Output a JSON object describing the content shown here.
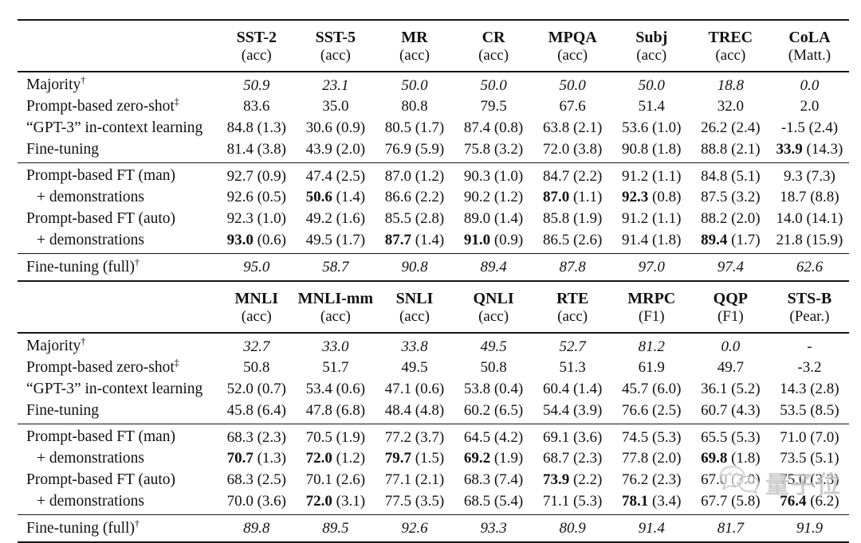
{
  "watermark": {
    "text": "量子位",
    "icon": "wechat-bubbles-icon",
    "color": "#c3c3c3"
  },
  "tables": [
    {
      "name": "single-sentence-tasks",
      "columns": [
        {
          "task": "SST-2",
          "metric": "(acc)"
        },
        {
          "task": "SST-5",
          "metric": "(acc)"
        },
        {
          "task": "MR",
          "metric": "(acc)"
        },
        {
          "task": "CR",
          "metric": "(acc)"
        },
        {
          "task": "MPQA",
          "metric": "(acc)"
        },
        {
          "task": "Subj",
          "metric": "(acc)"
        },
        {
          "task": "TREC",
          "metric": "(acc)"
        },
        {
          "task": "CoLA",
          "metric": "(Matt.)"
        }
      ],
      "groups": [
        {
          "cls": "g-baselines",
          "rows": [
            {
              "label": "Majority",
              "sup": "†",
              "italic": true,
              "cells": [
                {
                  "v": "50.9"
                },
                {
                  "v": "23.1"
                },
                {
                  "v": "50.0"
                },
                {
                  "v": "50.0"
                },
                {
                  "v": "50.0"
                },
                {
                  "v": "50.0"
                },
                {
                  "v": "18.8"
                },
                {
                  "v": "0.0"
                }
              ]
            },
            {
              "label": "Prompt-based zero-shot",
              "sup": "‡",
              "cells": [
                {
                  "v": "83.6"
                },
                {
                  "v": "35.0"
                },
                {
                  "v": "80.8"
                },
                {
                  "v": "79.5"
                },
                {
                  "v": "67.6"
                },
                {
                  "v": "51.4"
                },
                {
                  "v": "32.0"
                },
                {
                  "v": "2.0"
                }
              ]
            },
            {
              "label": "“GPT-3” in-context learning",
              "cells": [
                {
                  "v": "84.8",
                  "s": "(1.3)"
                },
                {
                  "v": "30.6",
                  "s": "(0.9)"
                },
                {
                  "v": "80.5",
                  "s": "(1.7)"
                },
                {
                  "v": "87.4",
                  "s": "(0.8)"
                },
                {
                  "v": "63.8",
                  "s": "(2.1)"
                },
                {
                  "v": "53.6",
                  "s": "(1.0)"
                },
                {
                  "v": "26.2",
                  "s": "(2.4)"
                },
                {
                  "v": "-1.5",
                  "s": "(2.4)"
                }
              ]
            },
            {
              "label": "Fine-tuning",
              "cells": [
                {
                  "v": "81.4",
                  "s": "(3.8)"
                },
                {
                  "v": "43.9",
                  "s": "(2.0)"
                },
                {
                  "v": "76.9",
                  "s": "(5.9)"
                },
                {
                  "v": "75.8",
                  "s": "(3.2)"
                },
                {
                  "v": "72.0",
                  "s": "(3.8)"
                },
                {
                  "v": "90.8",
                  "s": "(1.8)"
                },
                {
                  "v": "88.8",
                  "s": "(2.1)"
                },
                {
                  "v": "33.9",
                  "s": "(14.3)",
                  "b": true
                }
              ]
            }
          ]
        },
        {
          "cls": "g-prompt",
          "rows": [
            {
              "label": "Prompt-based FT (man)",
              "cells": [
                {
                  "v": "92.7",
                  "s": "(0.9)"
                },
                {
                  "v": "47.4",
                  "s": "(2.5)"
                },
                {
                  "v": "87.0",
                  "s": "(1.2)"
                },
                {
                  "v": "90.3",
                  "s": "(1.0)"
                },
                {
                  "v": "84.7",
                  "s": "(2.2)"
                },
                {
                  "v": "91.2",
                  "s": "(1.1)"
                },
                {
                  "v": "84.8",
                  "s": "(5.1)"
                },
                {
                  "v": "9.3",
                  "s": "(7.3)"
                }
              ]
            },
            {
              "label": "+ demonstrations",
              "indent": true,
              "cells": [
                {
                  "v": "92.6",
                  "s": "(0.5)"
                },
                {
                  "v": "50.6",
                  "s": "(1.4)",
                  "b": true
                },
                {
                  "v": "86.6",
                  "s": "(2.2)"
                },
                {
                  "v": "90.2",
                  "s": "(1.2)"
                },
                {
                  "v": "87.0",
                  "s": "(1.1)",
                  "b": true
                },
                {
                  "v": "92.3",
                  "s": "(0.8)",
                  "b": true
                },
                {
                  "v": "87.5",
                  "s": "(3.2)"
                },
                {
                  "v": "18.7",
                  "s": "(8.8)"
                }
              ]
            },
            {
              "label": "Prompt-based FT (auto)",
              "cells": [
                {
                  "v": "92.3",
                  "s": "(1.0)"
                },
                {
                  "v": "49.2",
                  "s": "(1.6)"
                },
                {
                  "v": "85.5",
                  "s": "(2.8)"
                },
                {
                  "v": "89.0",
                  "s": "(1.4)"
                },
                {
                  "v": "85.8",
                  "s": "(1.9)"
                },
                {
                  "v": "91.2",
                  "s": "(1.1)"
                },
                {
                  "v": "88.2",
                  "s": "(2.0)"
                },
                {
                  "v": "14.0",
                  "s": "(14.1)"
                }
              ]
            },
            {
              "label": "+ demonstrations",
              "indent": true,
              "cells": [
                {
                  "v": "93.0",
                  "s": "(0.6)",
                  "b": true
                },
                {
                  "v": "49.5",
                  "s": "(1.7)"
                },
                {
                  "v": "87.7",
                  "s": "(1.4)",
                  "b": true
                },
                {
                  "v": "91.0",
                  "s": "(0.9)",
                  "b": true
                },
                {
                  "v": "86.5",
                  "s": "(2.6)"
                },
                {
                  "v": "91.4",
                  "s": "(1.8)"
                },
                {
                  "v": "89.4",
                  "s": "(1.7)",
                  "b": true
                },
                {
                  "v": "21.8",
                  "s": "(15.9)"
                }
              ]
            }
          ]
        },
        {
          "cls": "g-full",
          "rows": [
            {
              "label": "Fine-tuning (full)",
              "sup": "†",
              "italic": true,
              "cells": [
                {
                  "v": "95.0"
                },
                {
                  "v": "58.7"
                },
                {
                  "v": "90.8"
                },
                {
                  "v": "89.4"
                },
                {
                  "v": "87.8"
                },
                {
                  "v": "97.0"
                },
                {
                  "v": "97.4"
                },
                {
                  "v": "62.6"
                }
              ]
            }
          ]
        }
      ]
    },
    {
      "name": "sentence-pair-tasks",
      "columns": [
        {
          "task": "MNLI",
          "metric": "(acc)"
        },
        {
          "task": "MNLI-mm",
          "metric": "(acc)"
        },
        {
          "task": "SNLI",
          "metric": "(acc)"
        },
        {
          "task": "QNLI",
          "metric": "(acc)"
        },
        {
          "task": "RTE",
          "metric": "(acc)"
        },
        {
          "task": "MRPC",
          "metric": "(F1)"
        },
        {
          "task": "QQP",
          "metric": "(F1)"
        },
        {
          "task": "STS-B",
          "metric": "(Pear.)"
        }
      ],
      "groups": [
        {
          "cls": "g-baselines",
          "rows": [
            {
              "label": "Majority",
              "sup": "†",
              "italic": true,
              "cells": [
                {
                  "v": "32.7"
                },
                {
                  "v": "33.0"
                },
                {
                  "v": "33.8"
                },
                {
                  "v": "49.5"
                },
                {
                  "v": "52.7"
                },
                {
                  "v": "81.2"
                },
                {
                  "v": "0.0"
                },
                {
                  "v": "-"
                }
              ]
            },
            {
              "label": "Prompt-based zero-shot",
              "sup": "‡",
              "cells": [
                {
                  "v": "50.8"
                },
                {
                  "v": "51.7"
                },
                {
                  "v": "49.5"
                },
                {
                  "v": "50.8"
                },
                {
                  "v": "51.3"
                },
                {
                  "v": "61.9"
                },
                {
                  "v": "49.7"
                },
                {
                  "v": "-3.2"
                }
              ]
            },
            {
              "label": "“GPT-3” in-context learning",
              "cells": [
                {
                  "v": "52.0",
                  "s": "(0.7)"
                },
                {
                  "v": "53.4",
                  "s": "(0.6)"
                },
                {
                  "v": "47.1",
                  "s": "(0.6)"
                },
                {
                  "v": "53.8",
                  "s": "(0.4)"
                },
                {
                  "v": "60.4",
                  "s": "(1.4)"
                },
                {
                  "v": "45.7",
                  "s": "(6.0)"
                },
                {
                  "v": "36.1",
                  "s": "(5.2)"
                },
                {
                  "v": "14.3",
                  "s": "(2.8)"
                }
              ]
            },
            {
              "label": "Fine-tuning",
              "cells": [
                {
                  "v": "45.8",
                  "s": "(6.4)"
                },
                {
                  "v": "47.8",
                  "s": "(6.8)"
                },
                {
                  "v": "48.4",
                  "s": "(4.8)"
                },
                {
                  "v": "60.2",
                  "s": "(6.5)"
                },
                {
                  "v": "54.4",
                  "s": "(3.9)"
                },
                {
                  "v": "76.6",
                  "s": "(2.5)"
                },
                {
                  "v": "60.7",
                  "s": "(4.3)"
                },
                {
                  "v": "53.5",
                  "s": "(8.5)"
                }
              ]
            }
          ]
        },
        {
          "cls": "g-prompt",
          "rows": [
            {
              "label": "Prompt-based FT (man)",
              "cells": [
                {
                  "v": "68.3",
                  "s": "(2.3)"
                },
                {
                  "v": "70.5",
                  "s": "(1.9)"
                },
                {
                  "v": "77.2",
                  "s": "(3.7)"
                },
                {
                  "v": "64.5",
                  "s": "(4.2)"
                },
                {
                  "v": "69.1",
                  "s": "(3.6)"
                },
                {
                  "v": "74.5",
                  "s": "(5.3)"
                },
                {
                  "v": "65.5",
                  "s": "(5.3)"
                },
                {
                  "v": "71.0",
                  "s": "(7.0)"
                }
              ]
            },
            {
              "label": "+ demonstrations",
              "indent": true,
              "cells": [
                {
                  "v": "70.7",
                  "s": "(1.3)",
                  "b": true
                },
                {
                  "v": "72.0",
                  "s": "(1.2)",
                  "b": true
                },
                {
                  "v": "79.7",
                  "s": "(1.5)",
                  "b": true
                },
                {
                  "v": "69.2",
                  "s": "(1.9)",
                  "b": true
                },
                {
                  "v": "68.7",
                  "s": "(2.3)"
                },
                {
                  "v": "77.8",
                  "s": "(2.0)"
                },
                {
                  "v": "69.8",
                  "s": "(1.8)",
                  "b": true
                },
                {
                  "v": "73.5",
                  "s": "(5.1)"
                }
              ]
            },
            {
              "label": "Prompt-based FT (auto)",
              "cells": [
                {
                  "v": "68.3",
                  "s": "(2.5)"
                },
                {
                  "v": "70.1",
                  "s": "(2.6)"
                },
                {
                  "v": "77.1",
                  "s": "(2.1)"
                },
                {
                  "v": "68.3",
                  "s": "(7.4)"
                },
                {
                  "v": "73.9",
                  "s": "(2.2)",
                  "b": true
                },
                {
                  "v": "76.2",
                  "s": "(2.3)"
                },
                {
                  "v": "67.0",
                  "s": "(3.0)"
                },
                {
                  "v": "75.0",
                  "s": "(3.3)"
                }
              ]
            },
            {
              "label": "+ demonstrations",
              "indent": true,
              "cells": [
                {
                  "v": "70.0",
                  "s": "(3.6)"
                },
                {
                  "v": "72.0",
                  "s": "(3.1)",
                  "b": true
                },
                {
                  "v": "77.5",
                  "s": "(3.5)"
                },
                {
                  "v": "68.5",
                  "s": "(5.4)"
                },
                {
                  "v": "71.1",
                  "s": "(5.3)"
                },
                {
                  "v": "78.1",
                  "s": "(3.4)",
                  "b": true
                },
                {
                  "v": "67.7",
                  "s": "(5.8)"
                },
                {
                  "v": "76.4",
                  "s": "(6.2)",
                  "b": true
                }
              ]
            }
          ]
        },
        {
          "cls": "g-full",
          "rows": [
            {
              "label": "Fine-tuning (full)",
              "sup": "†",
              "italic": true,
              "cells": [
                {
                  "v": "89.8"
                },
                {
                  "v": "89.5"
                },
                {
                  "v": "92.6"
                },
                {
                  "v": "93.3"
                },
                {
                  "v": "80.9"
                },
                {
                  "v": "91.4"
                },
                {
                  "v": "81.7"
                },
                {
                  "v": "91.9"
                }
              ]
            }
          ]
        }
      ]
    }
  ]
}
